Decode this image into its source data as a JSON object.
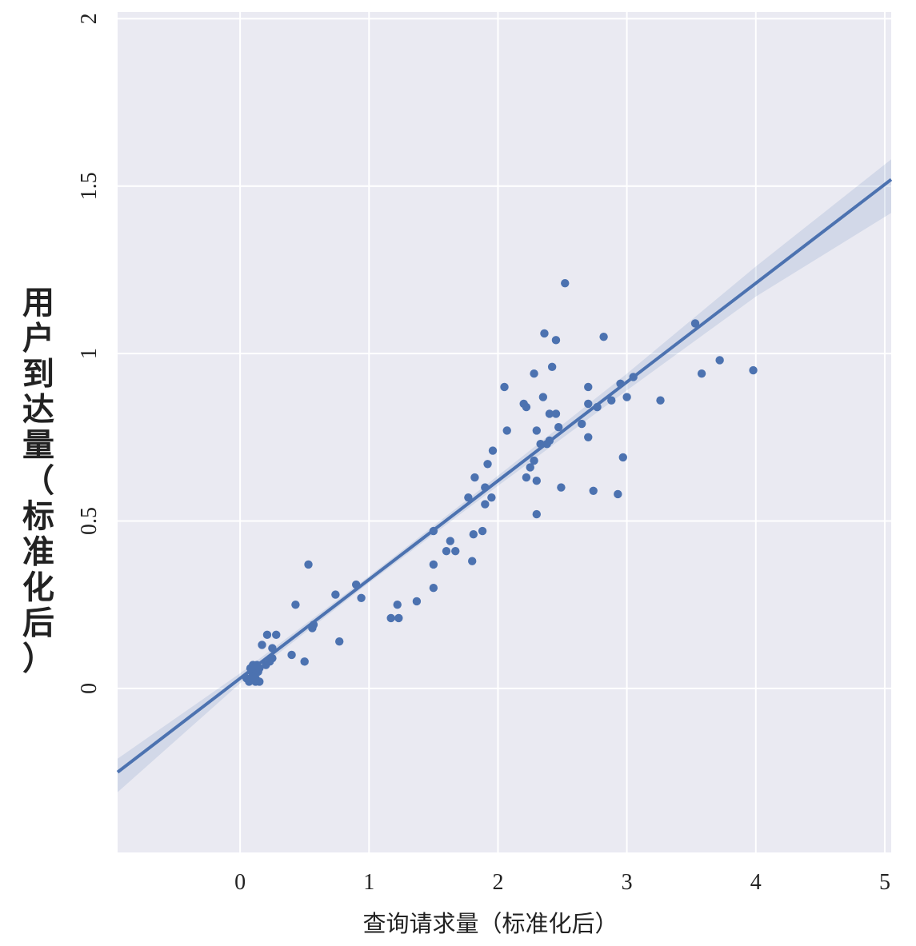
{
  "colors": {
    "plot_bg": "#eaeaf2",
    "grid": "#ffffff",
    "point": "#4c72b0",
    "line": "#4c72b0",
    "band": "#4c72b0"
  },
  "chart_data": {
    "type": "scatter",
    "title": "",
    "xlabel": "查询请求量（标准化后）",
    "ylabel": "用户到达量（标准化后）",
    "xlim": [
      -0.95,
      5.05
    ],
    "ylim": [
      -0.49,
      2.02
    ],
    "xticks": [
      0,
      1,
      2,
      3,
      4,
      5
    ],
    "xtick_labels": [
      "0",
      "1",
      "2",
      "3",
      "4",
      "5"
    ],
    "yticks": [
      0,
      0.5,
      1,
      1.5,
      2
    ],
    "ytick_labels": [
      "0",
      "0.5",
      "1",
      "1.5",
      "2"
    ],
    "grid": true,
    "regression": {
      "type": "linear",
      "intercept": 0.03,
      "slope": 0.295,
      "x_range": [
        -0.95,
        5.05
      ],
      "ci_band": [
        {
          "x": -0.95,
          "lo": -0.31,
          "hi": -0.21
        },
        {
          "x": 0.0,
          "lo": 0.015,
          "hi": 0.045
        },
        {
          "x": 1.0,
          "lo": 0.315,
          "hi": 0.335
        },
        {
          "x": 2.0,
          "lo": 0.605,
          "hi": 0.635
        },
        {
          "x": 3.0,
          "lo": 0.89,
          "hi": 0.94
        },
        {
          "x": 4.0,
          "lo": 1.17,
          "hi": 1.26
        },
        {
          "x": 5.05,
          "lo": 1.42,
          "hi": 1.58
        }
      ]
    },
    "points": [
      {
        "x": 0.05,
        "y": 0.03
      },
      {
        "x": 0.07,
        "y": 0.02
      },
      {
        "x": 0.09,
        "y": 0.05
      },
      {
        "x": 0.1,
        "y": 0.07
      },
      {
        "x": 0.1,
        "y": 0.04
      },
      {
        "x": 0.11,
        "y": 0.06
      },
      {
        "x": 0.12,
        "y": 0.03
      },
      {
        "x": 0.13,
        "y": 0.07
      },
      {
        "x": 0.14,
        "y": 0.05
      },
      {
        "x": 0.15,
        "y": 0.06
      },
      {
        "x": 0.15,
        "y": 0.02
      },
      {
        "x": 0.12,
        "y": 0.02
      },
      {
        "x": 0.08,
        "y": 0.06
      },
      {
        "x": 0.17,
        "y": 0.13
      },
      {
        "x": 0.2,
        "y": 0.07
      },
      {
        "x": 0.21,
        "y": 0.16
      },
      {
        "x": 0.23,
        "y": 0.08
      },
      {
        "x": 0.25,
        "y": 0.09
      },
      {
        "x": 0.25,
        "y": 0.12
      },
      {
        "x": 0.28,
        "y": 0.16
      },
      {
        "x": 0.4,
        "y": 0.1
      },
      {
        "x": 0.43,
        "y": 0.25
      },
      {
        "x": 0.5,
        "y": 0.08
      },
      {
        "x": 0.53,
        "y": 0.37
      },
      {
        "x": 0.56,
        "y": 0.18
      },
      {
        "x": 0.57,
        "y": 0.19
      },
      {
        "x": 0.74,
        "y": 0.28
      },
      {
        "x": 0.77,
        "y": 0.14
      },
      {
        "x": 0.9,
        "y": 0.31
      },
      {
        "x": 0.94,
        "y": 0.27
      },
      {
        "x": 1.17,
        "y": 0.21
      },
      {
        "x": 1.22,
        "y": 0.25
      },
      {
        "x": 1.23,
        "y": 0.21
      },
      {
        "x": 1.37,
        "y": 0.26
      },
      {
        "x": 1.5,
        "y": 0.3
      },
      {
        "x": 1.5,
        "y": 0.37
      },
      {
        "x": 1.5,
        "y": 0.47
      },
      {
        "x": 1.6,
        "y": 0.41
      },
      {
        "x": 1.63,
        "y": 0.44
      },
      {
        "x": 1.67,
        "y": 0.41
      },
      {
        "x": 1.77,
        "y": 0.57
      },
      {
        "x": 1.8,
        "y": 0.38
      },
      {
        "x": 1.82,
        "y": 0.63
      },
      {
        "x": 1.81,
        "y": 0.46
      },
      {
        "x": 1.88,
        "y": 0.47
      },
      {
        "x": 1.9,
        "y": 0.55
      },
      {
        "x": 1.9,
        "y": 0.6
      },
      {
        "x": 1.92,
        "y": 0.67
      },
      {
        "x": 1.95,
        "y": 0.57
      },
      {
        "x": 1.96,
        "y": 0.71
      },
      {
        "x": 2.05,
        "y": 0.9
      },
      {
        "x": 2.07,
        "y": 0.77
      },
      {
        "x": 2.2,
        "y": 0.85
      },
      {
        "x": 2.22,
        "y": 0.84
      },
      {
        "x": 2.22,
        "y": 0.63
      },
      {
        "x": 2.25,
        "y": 0.66
      },
      {
        "x": 2.28,
        "y": 0.94
      },
      {
        "x": 2.28,
        "y": 0.68
      },
      {
        "x": 2.3,
        "y": 0.77
      },
      {
        "x": 2.3,
        "y": 0.62
      },
      {
        "x": 2.3,
        "y": 0.52
      },
      {
        "x": 2.33,
        "y": 0.73
      },
      {
        "x": 2.35,
        "y": 0.87
      },
      {
        "x": 2.36,
        "y": 1.06
      },
      {
        "x": 2.38,
        "y": 0.73
      },
      {
        "x": 2.4,
        "y": 0.74
      },
      {
        "x": 2.4,
        "y": 0.82
      },
      {
        "x": 2.42,
        "y": 0.96
      },
      {
        "x": 2.45,
        "y": 1.04
      },
      {
        "x": 2.45,
        "y": 0.82
      },
      {
        "x": 2.47,
        "y": 0.78
      },
      {
        "x": 2.49,
        "y": 0.6
      },
      {
        "x": 2.52,
        "y": 1.21
      },
      {
        "x": 2.65,
        "y": 0.79
      },
      {
        "x": 2.7,
        "y": 0.9
      },
      {
        "x": 2.7,
        "y": 0.85
      },
      {
        "x": 2.7,
        "y": 0.75
      },
      {
        "x": 2.74,
        "y": 0.59
      },
      {
        "x": 2.77,
        "y": 0.84
      },
      {
        "x": 2.82,
        "y": 1.05
      },
      {
        "x": 2.88,
        "y": 0.86
      },
      {
        "x": 2.93,
        "y": 0.58
      },
      {
        "x": 2.95,
        "y": 0.91
      },
      {
        "x": 2.97,
        "y": 0.69
      },
      {
        "x": 3.0,
        "y": 0.87
      },
      {
        "x": 3.05,
        "y": 0.93
      },
      {
        "x": 3.26,
        "y": 0.86
      },
      {
        "x": 3.53,
        "y": 1.09
      },
      {
        "x": 3.58,
        "y": 0.94
      },
      {
        "x": 3.72,
        "y": 0.98
      },
      {
        "x": 3.98,
        "y": 0.95
      }
    ]
  }
}
